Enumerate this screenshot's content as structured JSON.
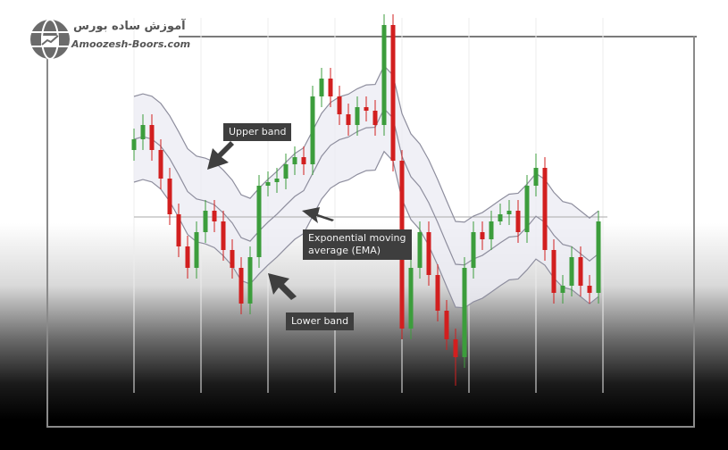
{
  "logo": {
    "text_fa": "آموزش ساده بورس",
    "text_en": "Amoozesh-Boors.com"
  },
  "annotations": {
    "upper": "Upper band",
    "ema": "Exponential moving average (EMA)",
    "ema_line1": "Exponential moving",
    "ema_line2": "average (EMA)",
    "lower": "Lower band"
  },
  "colors": {
    "up": "#3c9d3c",
    "down": "#d21f1f",
    "band": "#8e8e9e",
    "fill": "#ececf4",
    "label_bg": "#3e3e3e",
    "arrow": "#3f3f3f"
  },
  "chart_data": {
    "type": "candlestick",
    "title": "",
    "xlabel": "",
    "ylabel": "",
    "axes_shown": false,
    "grid": true,
    "indicator": {
      "type": "EMA with upper/lower bands"
    },
    "candles_ohlc": [
      [
        68,
        74,
        65,
        71
      ],
      [
        71,
        78,
        68,
        75
      ],
      [
        75,
        78,
        65,
        68
      ],
      [
        68,
        71,
        57,
        60
      ],
      [
        60,
        63,
        47,
        50
      ],
      [
        50,
        53,
        38,
        41
      ],
      [
        41,
        44,
        32,
        35
      ],
      [
        35,
        48,
        32,
        45
      ],
      [
        45,
        54,
        42,
        51
      ],
      [
        51,
        54,
        45,
        48
      ],
      [
        48,
        51,
        37,
        40
      ],
      [
        40,
        43,
        32,
        35
      ],
      [
        35,
        38,
        22,
        25
      ],
      [
        25,
        41,
        22,
        38
      ],
      [
        38,
        61,
        35,
        58
      ],
      [
        58,
        62,
        55,
        59
      ],
      [
        59,
        63,
        56,
        60
      ],
      [
        60,
        67,
        57,
        64
      ],
      [
        64,
        69,
        61,
        66
      ],
      [
        66,
        69,
        61,
        64
      ],
      [
        64,
        86,
        61,
        83
      ],
      [
        83,
        91,
        80,
        88
      ],
      [
        88,
        91,
        80,
        83
      ],
      [
        83,
        86,
        75,
        78
      ],
      [
        78,
        81,
        72,
        75
      ],
      [
        75,
        83,
        72,
        80
      ],
      [
        80,
        83,
        76,
        79
      ],
      [
        79,
        82,
        72,
        75
      ],
      [
        75,
        106,
        72,
        103
      ],
      [
        103,
        106,
        62,
        65
      ],
      [
        65,
        68,
        15,
        18
      ],
      [
        18,
        38,
        15,
        35
      ],
      [
        35,
        48,
        32,
        45
      ],
      [
        45,
        48,
        30,
        33
      ],
      [
        33,
        36,
        20,
        23
      ],
      [
        23,
        26,
        12,
        15
      ],
      [
        15,
        18,
        2,
        10
      ],
      [
        10,
        38,
        7,
        35
      ],
      [
        35,
        48,
        32,
        45
      ],
      [
        45,
        48,
        40,
        43
      ],
      [
        43,
        51,
        40,
        48
      ],
      [
        48,
        53,
        47,
        50
      ],
      [
        50,
        54,
        47,
        51
      ],
      [
        51,
        54,
        42,
        45
      ],
      [
        45,
        61,
        42,
        58
      ],
      [
        58,
        67,
        55,
        63
      ],
      [
        63,
        66,
        37,
        40
      ],
      [
        40,
        43,
        25,
        28
      ],
      [
        28,
        33,
        25,
        30
      ],
      [
        30,
        41,
        27,
        38
      ],
      [
        38,
        41,
        27,
        30
      ],
      [
        30,
        33,
        25,
        28
      ],
      [
        28,
        51,
        25,
        48
      ]
    ]
  }
}
